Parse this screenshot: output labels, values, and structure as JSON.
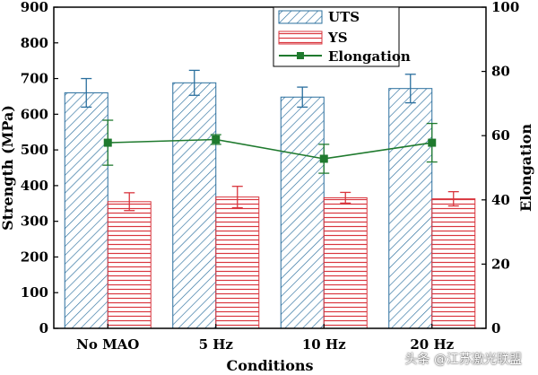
{
  "chart_data": {
    "type": "bar",
    "categories": [
      "No MAO",
      "5 Hz",
      "10 Hz",
      "20 Hz"
    ],
    "xlabel": "Conditions",
    "ylabel": "Strength (MPa)",
    "ylim": [
      0,
      900
    ],
    "yticks": [
      "0",
      "100",
      "200",
      "300",
      "400",
      "500",
      "600",
      "700",
      "800",
      "900"
    ],
    "y2label": "Elongation",
    "y2lim": [
      0,
      100
    ],
    "y2ticks": [
      "0",
      "20",
      "40",
      "60",
      "80",
      "100"
    ],
    "series": [
      {
        "name": "UTS",
        "axis": "left",
        "values": [
          660,
          688,
          648,
          672
        ],
        "errors": [
          40,
          35,
          28,
          40
        ],
        "color": "#2a6f9e"
      },
      {
        "name": "YS",
        "axis": "left",
        "values": [
          355,
          368,
          366,
          363
        ],
        "errors": [
          25,
          30,
          15,
          20
        ],
        "color": "#d9363e"
      },
      {
        "name": "Elongation",
        "axis": "right",
        "type": "line",
        "values": [
          57.8,
          58.8,
          52.8,
          57.8
        ],
        "errors": [
          7,
          1.5,
          4.5,
          6
        ],
        "color": "#1f7a2e"
      }
    ],
    "legend": {
      "position": "top-right",
      "entries": [
        "UTS",
        "YS",
        "Elongation"
      ]
    }
  },
  "watermark": "头条 @江苏激光联盟"
}
